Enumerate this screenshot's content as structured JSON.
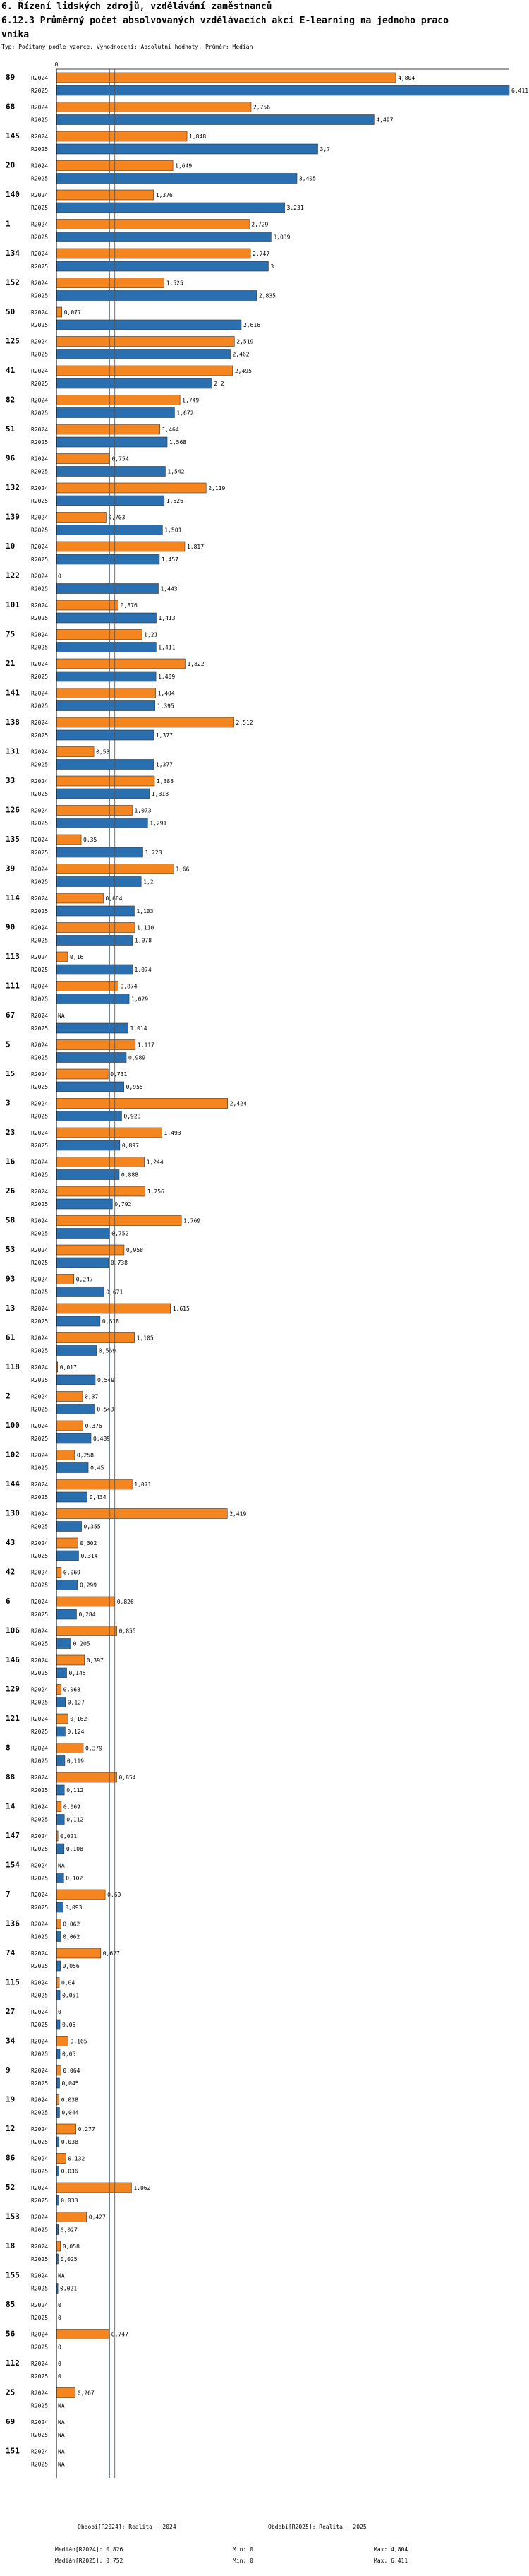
{
  "header": {
    "line1": "6. Řízení lidských zdrojů, vzdělávání zaměstnanců",
    "line2": "6.12.3 Průměrný počet absolvovaných vzdělávacích akcí E-learning na jednoho praco",
    "line3": "vníka",
    "subtitle": "Typ: Počítaný podle vzorce, Vyhodnocení: Absolutní hodnoty, Průměr: Medián"
  },
  "footer": {
    "left_title": "Období[R2024]: Realita - 2024",
    "right_title": "Období[R2025]: Realita - 2025",
    "stats": [
      {
        "median": "Medián[R2024]: 0,826",
        "min": "Min: 0",
        "max": "Max: 4,804"
      },
      {
        "median": "Medián[R2025]: 0,752",
        "min": "Min: 0",
        "max": "Max: 6,411"
      }
    ]
  },
  "chart_data": {
    "type": "bar",
    "orientation": "horizontal",
    "title": "6.12.3 Průměrný počet absolvovaných vzdělávacích akcí E-learning na jednoho pracovníka",
    "xlim": [
      0,
      6.411
    ],
    "axis_zero_label": "0",
    "medians": {
      "R2024": 0.826,
      "R2025": 0.752
    },
    "series": [
      {
        "name": "R2024",
        "color": "#f5861f"
      },
      {
        "name": "R2025",
        "color": "#2a6fb0"
      }
    ],
    "categories": [
      {
        "id": "89",
        "R2024": 4.804,
        "l2024": "4,804",
        "R2025": 6.411,
        "l2025": "6,411"
      },
      {
        "id": "68",
        "R2024": 2.756,
        "l2024": "2,756",
        "R2025": 4.497,
        "l2025": "4,497"
      },
      {
        "id": "145",
        "R2024": 1.848,
        "l2024": "1,848",
        "R2025": 3.7,
        "l2025": "3,7"
      },
      {
        "id": "20",
        "R2024": 1.649,
        "l2024": "1,649",
        "R2025": 3.405,
        "l2025": "3,405"
      },
      {
        "id": "140",
        "R2024": 1.376,
        "l2024": "1,376",
        "R2025": 3.231,
        "l2025": "3,231"
      },
      {
        "id": "1",
        "R2024": 2.729,
        "l2024": "2,729",
        "R2025": 3.039,
        "l2025": "3,039"
      },
      {
        "id": "134",
        "R2024": 2.747,
        "l2024": "2,747",
        "R2025": 3.0,
        "l2025": "3"
      },
      {
        "id": "152",
        "R2024": 1.525,
        "l2024": "1,525",
        "R2025": 2.835,
        "l2025": "2,835"
      },
      {
        "id": "50",
        "R2024": 0.077,
        "l2024": "0,077",
        "R2025": 2.616,
        "l2025": "2,616"
      },
      {
        "id": "125",
        "R2024": 2.519,
        "l2024": "2,519",
        "R2025": 2.462,
        "l2025": "2,462"
      },
      {
        "id": "41",
        "R2024": 2.495,
        "l2024": "2,495",
        "R2025": 2.2,
        "l2025": "2,2"
      },
      {
        "id": "82",
        "R2024": 1.749,
        "l2024": "1,749",
        "R2025": 1.672,
        "l2025": "1,672"
      },
      {
        "id": "51",
        "R2024": 1.464,
        "l2024": "1,464",
        "R2025": 1.568,
        "l2025": "1,568"
      },
      {
        "id": "96",
        "R2024": 0.754,
        "l2024": "0,754",
        "R2025": 1.542,
        "l2025": "1,542"
      },
      {
        "id": "132",
        "R2024": 2.119,
        "l2024": "2,119",
        "R2025": 1.526,
        "l2025": "1,526"
      },
      {
        "id": "139",
        "R2024": 0.703,
        "l2024": "0,703",
        "R2025": 1.501,
        "l2025": "1,501"
      },
      {
        "id": "10",
        "R2024": 1.817,
        "l2024": "1,817",
        "R2025": 1.457,
        "l2025": "1,457"
      },
      {
        "id": "122",
        "R2024": 0,
        "l2024": "0",
        "R2025": 1.443,
        "l2025": "1,443"
      },
      {
        "id": "101",
        "R2024": 0.876,
        "l2024": "0,876",
        "R2025": 1.413,
        "l2025": "1,413"
      },
      {
        "id": "75",
        "R2024": 1.21,
        "l2024": "1,21",
        "R2025": 1.411,
        "l2025": "1,411"
      },
      {
        "id": "21",
        "R2024": 1.822,
        "l2024": "1,822",
        "R2025": 1.409,
        "l2025": "1,409"
      },
      {
        "id": "141",
        "R2024": 1.404,
        "l2024": "1,404",
        "R2025": 1.395,
        "l2025": "1,395"
      },
      {
        "id": "138",
        "R2024": 2.512,
        "l2024": "2,512",
        "R2025": 1.377,
        "l2025": "1,377"
      },
      {
        "id": "131",
        "R2024": 0.53,
        "l2024": "0,53",
        "R2025": 1.377,
        "l2025": "1,377"
      },
      {
        "id": "33",
        "R2024": 1.388,
        "l2024": "1,388",
        "R2025": 1.318,
        "l2025": "1,318"
      },
      {
        "id": "126",
        "R2024": 1.073,
        "l2024": "1,073",
        "R2025": 1.291,
        "l2025": "1,291"
      },
      {
        "id": "135",
        "R2024": 0.35,
        "l2024": "0,35",
        "R2025": 1.223,
        "l2025": "1,223"
      },
      {
        "id": "39",
        "R2024": 1.66,
        "l2024": "1,66",
        "R2025": 1.2,
        "l2025": "1,2"
      },
      {
        "id": "114",
        "R2024": 0.664,
        "l2024": "0,664",
        "R2025": 1.103,
        "l2025": "1,103"
      },
      {
        "id": "90",
        "R2024": 1.11,
        "l2024": "1,110",
        "R2025": 1.078,
        "l2025": "1,078"
      },
      {
        "id": "113",
        "R2024": 0.16,
        "l2024": "0,16",
        "R2025": 1.074,
        "l2025": "1,074"
      },
      {
        "id": "111",
        "R2024": 0.874,
        "l2024": "0,874",
        "R2025": 1.029,
        "l2025": "1,029"
      },
      {
        "id": "67",
        "R2024": null,
        "l2024": "NA",
        "R2025": 1.014,
        "l2025": "1,014"
      },
      {
        "id": "5",
        "R2024": 1.117,
        "l2024": "1,117",
        "R2025": 0.989,
        "l2025": "0,989"
      },
      {
        "id": "15",
        "R2024": 0.731,
        "l2024": "0,731",
        "R2025": 0.955,
        "l2025": "0,955"
      },
      {
        "id": "3",
        "R2024": 2.424,
        "l2024": "2,424",
        "R2025": 0.923,
        "l2025": "0,923"
      },
      {
        "id": "23",
        "R2024": 1.493,
        "l2024": "1,493",
        "R2025": 0.897,
        "l2025": "0,897"
      },
      {
        "id": "16",
        "R2024": 1.244,
        "l2024": "1,244",
        "R2025": 0.888,
        "l2025": "0,888"
      },
      {
        "id": "26",
        "R2024": 1.256,
        "l2024": "1,256",
        "R2025": 0.792,
        "l2025": "0,792"
      },
      {
        "id": "58",
        "R2024": 1.769,
        "l2024": "1,769",
        "R2025": 0.752,
        "l2025": "0,752"
      },
      {
        "id": "53",
        "R2024": 0.958,
        "l2024": "0,958",
        "R2025": 0.738,
        "l2025": "0,738"
      },
      {
        "id": "93",
        "R2024": 0.247,
        "l2024": "0,247",
        "R2025": 0.671,
        "l2025": "0,671"
      },
      {
        "id": "13",
        "R2024": 1.615,
        "l2024": "1,615",
        "R2025": 0.618,
        "l2025": "0,618"
      },
      {
        "id": "61",
        "R2024": 1.105,
        "l2024": "1,105",
        "R2025": 0.569,
        "l2025": "0,569"
      },
      {
        "id": "118",
        "R2024": 0.017,
        "l2024": "0,017",
        "R2025": 0.549,
        "l2025": "0,549"
      },
      {
        "id": "2",
        "R2024": 0.37,
        "l2024": "0,37",
        "R2025": 0.543,
        "l2025": "0,543"
      },
      {
        "id": "100",
        "R2024": 0.376,
        "l2024": "0,376",
        "R2025": 0.489,
        "l2025": "0,489"
      },
      {
        "id": "102",
        "R2024": 0.258,
        "l2024": "0,258",
        "R2025": 0.45,
        "l2025": "0,45"
      },
      {
        "id": "144",
        "R2024": 1.071,
        "l2024": "1,071",
        "R2025": 0.434,
        "l2025": "0,434"
      },
      {
        "id": "130",
        "R2024": 2.419,
        "l2024": "2,419",
        "R2025": 0.355,
        "l2025": "0,355"
      },
      {
        "id": "43",
        "R2024": 0.302,
        "l2024": "0,302",
        "R2025": 0.314,
        "l2025": "0,314"
      },
      {
        "id": "42",
        "R2024": 0.069,
        "l2024": "0,069",
        "R2025": 0.299,
        "l2025": "0,299"
      },
      {
        "id": "6",
        "R2024": 0.826,
        "l2024": "0,826",
        "R2025": 0.284,
        "l2025": "0,284"
      },
      {
        "id": "106",
        "R2024": 0.855,
        "l2024": "0,855",
        "R2025": 0.205,
        "l2025": "0,205"
      },
      {
        "id": "146",
        "R2024": 0.397,
        "l2024": "0,397",
        "R2025": 0.145,
        "l2025": "0,145"
      },
      {
        "id": "129",
        "R2024": 0.068,
        "l2024": "0,068",
        "R2025": 0.127,
        "l2025": "0,127"
      },
      {
        "id": "121",
        "R2024": 0.162,
        "l2024": "0,162",
        "R2025": 0.124,
        "l2025": "0,124"
      },
      {
        "id": "8",
        "R2024": 0.379,
        "l2024": "0,379",
        "R2025": 0.119,
        "l2025": "0,119"
      },
      {
        "id": "88",
        "R2024": 0.854,
        "l2024": "0,854",
        "R2025": 0.112,
        "l2025": "0,112"
      },
      {
        "id": "14",
        "R2024": 0.069,
        "l2024": "0,069",
        "R2025": 0.112,
        "l2025": "0,112"
      },
      {
        "id": "147",
        "R2024": 0.021,
        "l2024": "0,021",
        "R2025": 0.108,
        "l2025": "0,108"
      },
      {
        "id": "154",
        "R2024": null,
        "l2024": "NA",
        "R2025": 0.102,
        "l2025": "0,102"
      },
      {
        "id": "7",
        "R2024": 0.69,
        "l2024": "0,69",
        "R2025": 0.093,
        "l2025": "0,093"
      },
      {
        "id": "136",
        "R2024": 0.062,
        "l2024": "0,062",
        "R2025": 0.062,
        "l2025": "0,062"
      },
      {
        "id": "74",
        "R2024": 0.627,
        "l2024": "0,627",
        "R2025": 0.056,
        "l2025": "0,056"
      },
      {
        "id": "115",
        "R2024": 0.04,
        "l2024": "0,04",
        "R2025": 0.051,
        "l2025": "0,051"
      },
      {
        "id": "27",
        "R2024": 0,
        "l2024": "0",
        "R2025": 0.05,
        "l2025": "0,05"
      },
      {
        "id": "34",
        "R2024": 0.165,
        "l2024": "0,165",
        "R2025": 0.05,
        "l2025": "0,05"
      },
      {
        "id": "9",
        "R2024": 0.064,
        "l2024": "0,064",
        "R2025": 0.045,
        "l2025": "0,045"
      },
      {
        "id": "19",
        "R2024": 0.038,
        "l2024": "0,038",
        "R2025": 0.044,
        "l2025": "0,044"
      },
      {
        "id": "12",
        "R2024": 0.277,
        "l2024": "0,277",
        "R2025": 0.038,
        "l2025": "0,038"
      },
      {
        "id": "86",
        "R2024": 0.132,
        "l2024": "0,132",
        "R2025": 0.036,
        "l2025": "0,036"
      },
      {
        "id": "52",
        "R2024": 1.062,
        "l2024": "1,062",
        "R2025": 0.033,
        "l2025": "0,033"
      },
      {
        "id": "153",
        "R2024": 0.427,
        "l2024": "0,427",
        "R2025": 0.027,
        "l2025": "0,027"
      },
      {
        "id": "18",
        "R2024": 0.058,
        "l2024": "0,058",
        "R2025": 0.025,
        "l2025": "0,025"
      },
      {
        "id": "155",
        "R2024": null,
        "l2024": "NA",
        "R2025": 0.021,
        "l2025": "0,021"
      },
      {
        "id": "85",
        "R2024": 0,
        "l2024": "0",
        "R2025": 0,
        "l2025": "0"
      },
      {
        "id": "56",
        "R2024": 0.747,
        "l2024": "0,747",
        "R2025": 0,
        "l2025": "0"
      },
      {
        "id": "112",
        "R2024": 0,
        "l2024": "0",
        "R2025": 0,
        "l2025": "0"
      },
      {
        "id": "25",
        "R2024": 0.267,
        "l2024": "0,267",
        "R2025": null,
        "l2025": "NA"
      },
      {
        "id": "69",
        "R2024": null,
        "l2024": "NA",
        "R2025": null,
        "l2025": "NA"
      },
      {
        "id": "151",
        "R2024": null,
        "l2024": "NA",
        "R2025": null,
        "l2025": "NA"
      }
    ]
  }
}
